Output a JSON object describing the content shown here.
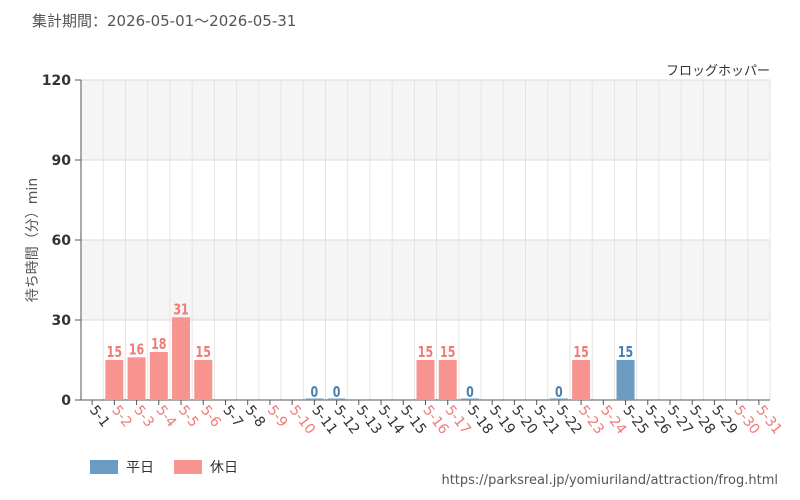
{
  "header": {
    "period": "集計期間：2026-05-01～2026-05-31"
  },
  "footer": {
    "source_url": "https://parksreal.jp/yomiuriland/attraction/frog.html"
  },
  "colors": {
    "weekday": "#6b9dc4",
    "holiday": "#f79490",
    "weekday_text": "#4a7fb0",
    "holiday_text": "#f07a76",
    "band": "#f5f5f5",
    "grid": "#e4e4e4"
  },
  "chart_data": {
    "type": "bar",
    "title": "フロッグホッパー",
    "ylabel": "待ち時間（分）min",
    "xlabel": "",
    "ylim": [
      0,
      120
    ],
    "yticks": [
      0,
      30,
      60,
      90,
      120
    ],
    "grid": true,
    "legend_position": "bottom-left",
    "series": [
      {
        "name": "平日",
        "key": "weekday"
      },
      {
        "name": "休日",
        "key": "holiday"
      }
    ],
    "categories": [
      "5-1",
      "5-2",
      "5-3",
      "5-4",
      "5-5",
      "5-6",
      "5-7",
      "5-8",
      "5-9",
      "5-10",
      "5-11",
      "5-12",
      "5-13",
      "5-14",
      "5-15",
      "5-16",
      "5-17",
      "5-18",
      "5-19",
      "5-20",
      "5-21",
      "5-22",
      "5-23",
      "5-24",
      "5-25",
      "5-26",
      "5-27",
      "5-28",
      "5-29",
      "5-30",
      "5-31"
    ],
    "day_type": [
      "weekday",
      "holiday",
      "holiday",
      "holiday",
      "holiday",
      "holiday",
      "weekday",
      "weekday",
      "holiday",
      "holiday",
      "weekday",
      "weekday",
      "weekday",
      "weekday",
      "weekday",
      "holiday",
      "holiday",
      "weekday",
      "weekday",
      "weekday",
      "weekday",
      "weekday",
      "holiday",
      "holiday",
      "weekday",
      "weekday",
      "weekday",
      "weekday",
      "weekday",
      "holiday",
      "holiday"
    ],
    "values": [
      null,
      15,
      16,
      18,
      31,
      15,
      null,
      null,
      null,
      null,
      0,
      0,
      null,
      null,
      null,
      15,
      15,
      0,
      null,
      null,
      null,
      0,
      15,
      null,
      15,
      null,
      null,
      null,
      null,
      null,
      null
    ]
  }
}
